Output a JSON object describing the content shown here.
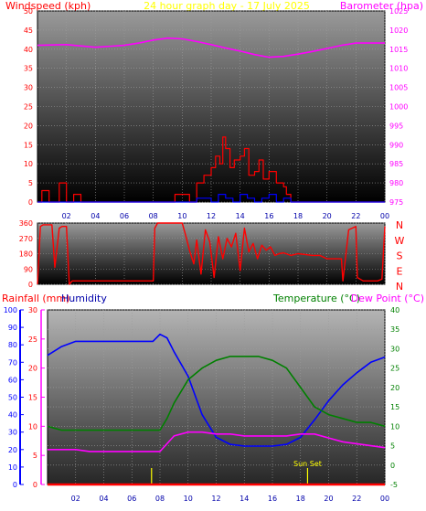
{
  "header": {
    "left_label": "Windspeed (kph)",
    "center_label": "24 hour graph day - 17 July 2025",
    "right_label": "Barometer (hpa)"
  },
  "colors": {
    "wind": "#ff0000",
    "gust": "#0000ff",
    "barometer": "#ff00ff",
    "direction": "#ff0000",
    "humidity": "#0000ff",
    "temperature": "#008000",
    "dewpoint": "#ff00ff",
    "rain": "#ff0000",
    "title": "#ffff00",
    "axis_left": "#ff0000",
    "axis_right": "#ff00ff"
  },
  "chart_data": [
    {
      "type": "line",
      "title": "24 hour graph day - 17 July 2025",
      "xlabel": "",
      "x_ticks": [
        "02",
        "04",
        "06",
        "08",
        "10",
        "12",
        "14",
        "16",
        "18",
        "20",
        "22",
        "00"
      ],
      "xlim": [
        0,
        24
      ],
      "left_axis": {
        "label": "Windspeed (kph)",
        "ticks": [
          0,
          5,
          10,
          15,
          20,
          25,
          30,
          35,
          40,
          45,
          50
        ],
        "ylim": [
          0,
          50
        ]
      },
      "right_axis": {
        "label": "Barometer (hpa)",
        "ticks": [
          975,
          980,
          985,
          990,
          995,
          1000,
          1005,
          1010,
          1015,
          1020,
          1025
        ],
        "ylim": [
          975,
          1025
        ]
      },
      "series": [
        {
          "name": "Barometer (hpa)",
          "axis": "right",
          "x": [
            0,
            2,
            4,
            6,
            7,
            8,
            9,
            10,
            11,
            12,
            13,
            14,
            15,
            16,
            17,
            18,
            19,
            20,
            21,
            22,
            23,
            24
          ],
          "y": [
            1016.0,
            1016.2,
            1015.5,
            1016.0,
            1016.6,
            1017.4,
            1017.9,
            1017.7,
            1017.0,
            1016.2,
            1015.3,
            1014.5,
            1013.6,
            1012.9,
            1013.1,
            1013.7,
            1014.4,
            1015.2,
            1016.0,
            1016.6,
            1016.6,
            1016.6
          ]
        },
        {
          "name": "Windspeed (kph)",
          "axis": "left",
          "x": [
            0,
            0.3,
            0.8,
            1.2,
            1.5,
            2,
            2.5,
            3,
            5,
            8,
            9.5,
            10.5,
            11,
            11.5,
            12,
            12.3,
            12.6,
            12.8,
            13,
            13.3,
            13.6,
            14,
            14.3,
            14.6,
            15,
            15.3,
            15.6,
            16,
            16.5,
            17,
            17.2,
            17.5,
            18,
            20,
            22,
            24
          ],
          "y": [
            0,
            3,
            0,
            0,
            5,
            0,
            2,
            0,
            0,
            0,
            2,
            0,
            5,
            7,
            9,
            12,
            10,
            17,
            14,
            9,
            11,
            12,
            14,
            7,
            8,
            11,
            6,
            8,
            5,
            4,
            2,
            0,
            0,
            0,
            0,
            0
          ]
        },
        {
          "name": "Gust",
          "axis": "left",
          "x": [
            0,
            10.5,
            11,
            12,
            12.5,
            13,
            13.5,
            14,
            14.5,
            15,
            15.5,
            16,
            16.5,
            17,
            17.5,
            24
          ],
          "y": [
            0,
            0,
            1,
            0,
            2,
            1,
            0,
            2,
            1,
            0,
            1,
            2,
            0,
            1,
            0,
            0
          ]
        }
      ]
    },
    {
      "type": "line",
      "title": "",
      "xlim": [
        0,
        24
      ],
      "left_axis": {
        "label": "",
        "ticks": [
          0,
          90,
          180,
          270,
          360
        ],
        "ylim": [
          0,
          360
        ]
      },
      "right_axis": {
        "label": "",
        "ticks": [
          "N",
          "E",
          "S",
          "W",
          "N"
        ]
      },
      "series": [
        {
          "name": "Wind direction",
          "x": [
            0,
            0.2,
            0.4,
            1,
            1.2,
            1.5,
            1.7,
            2,
            2.2,
            2.4,
            4,
            6,
            7,
            7.5,
            8,
            8.1,
            8.3,
            9,
            9.5,
            10,
            10.2,
            10.5,
            10.8,
            11,
            11.3,
            11.6,
            11.9,
            12.2,
            12.5,
            12.8,
            13.1,
            13.4,
            13.7,
            14,
            14.3,
            14.6,
            14.9,
            15.2,
            15.5,
            15.8,
            16.1,
            16.4,
            16.7,
            17,
            17.5,
            18,
            18.5,
            19,
            19.5,
            20,
            20.5,
            21,
            21.1,
            21.5,
            22,
            22.1,
            22.5,
            23,
            23.5,
            23.8,
            24
          ],
          "y": [
            0,
            340,
            350,
            350,
            100,
            330,
            340,
            340,
            0,
            20,
            20,
            20,
            20,
            20,
            20,
            330,
            360,
            360,
            360,
            360,
            300,
            200,
            120,
            260,
            60,
            320,
            250,
            40,
            280,
            150,
            270,
            220,
            300,
            80,
            330,
            190,
            240,
            150,
            230,
            200,
            220,
            170,
            180,
            185,
            170,
            180,
            175,
            170,
            170,
            150,
            150,
            150,
            20,
            320,
            340,
            40,
            20,
            20,
            20,
            30,
            340
          ]
        }
      ]
    },
    {
      "type": "line",
      "title": "",
      "xlim": [
        0,
        24
      ],
      "axes": [
        {
          "label": "Rainfall (mm)",
          "ticks": [
            0,
            10,
            20,
            30,
            40,
            50,
            60,
            70,
            80,
            90,
            100
          ],
          "ylim": [
            0,
            100
          ]
        },
        {
          "label": "Humidity",
          "ticks": [
            0,
            5,
            10,
            15,
            20,
            25,
            30
          ],
          "ylim": [
            0,
            30
          ]
        },
        {
          "label": "Temperature (°C)",
          "ticks": [
            -5,
            0,
            5,
            10,
            15,
            20,
            25,
            30,
            35,
            40
          ],
          "ylim": [
            -5,
            40
          ]
        },
        {
          "label": "Dew Point (°C)"
        }
      ],
      "annotation": {
        "text": "Sun Set",
        "x": 18.5
      },
      "series": [
        {
          "name": "Humidity",
          "axis": "Rainfall (mm)",
          "x": [
            0,
            1,
            2,
            3,
            4,
            5,
            6,
            7,
            7.5,
            8,
            8.5,
            9,
            10,
            11,
            12,
            13,
            14,
            15,
            16,
            17,
            18,
            19,
            20,
            21,
            22,
            23,
            24
          ],
          "y": [
            74,
            79,
            82,
            82,
            82,
            82,
            82,
            82,
            82,
            86,
            84,
            76,
            62,
            40,
            27,
            23,
            22,
            22,
            22,
            23,
            27,
            37,
            48,
            57,
            64,
            70,
            73
          ]
        },
        {
          "name": "Temperature (°C)",
          "axis": "Temperature (°C)",
          "x": [
            0,
            1,
            2,
            3,
            4,
            5,
            6,
            7,
            7.5,
            8,
            8.5,
            9,
            10,
            11,
            12,
            13,
            14,
            15,
            16,
            17,
            18,
            19,
            20,
            21,
            22,
            23,
            24
          ],
          "y": [
            10,
            9,
            9,
            9,
            9,
            9,
            9,
            9,
            9,
            9,
            12,
            16,
            22,
            25,
            27,
            28,
            28,
            28,
            27,
            25,
            20,
            15,
            13,
            12,
            11,
            11,
            10
          ]
        },
        {
          "name": "Dew Point (°C)",
          "axis": "Temperature (°C)",
          "x": [
            0,
            1,
            2,
            3,
            4,
            5,
            6,
            7,
            7.5,
            8,
            8.5,
            9,
            10,
            11,
            12,
            13,
            14,
            15,
            16,
            17,
            18,
            19,
            20,
            21,
            22,
            23,
            24
          ],
          "y": [
            4,
            4,
            4,
            3.5,
            3.5,
            3.5,
            3.5,
            3.5,
            3.5,
            3.5,
            5.5,
            7.5,
            8.5,
            8.5,
            8,
            8,
            7.5,
            7.5,
            7.5,
            7.5,
            8,
            8,
            7,
            6,
            5.5,
            5,
            4.5
          ]
        },
        {
          "name": "Rainfall (mm)",
          "axis": "Rainfall (mm)",
          "x": [
            0,
            24
          ],
          "y": [
            0,
            0
          ]
        }
      ]
    }
  ],
  "panel2_right_labels": [
    "N",
    "W",
    "S",
    "E",
    "N"
  ],
  "panel3_headers": {
    "rain": "Rainfall (mm)",
    "humidity": "Humidity",
    "temperature": "Temperature (°C)",
    "dewpoint": "Dew Point (°C)"
  }
}
